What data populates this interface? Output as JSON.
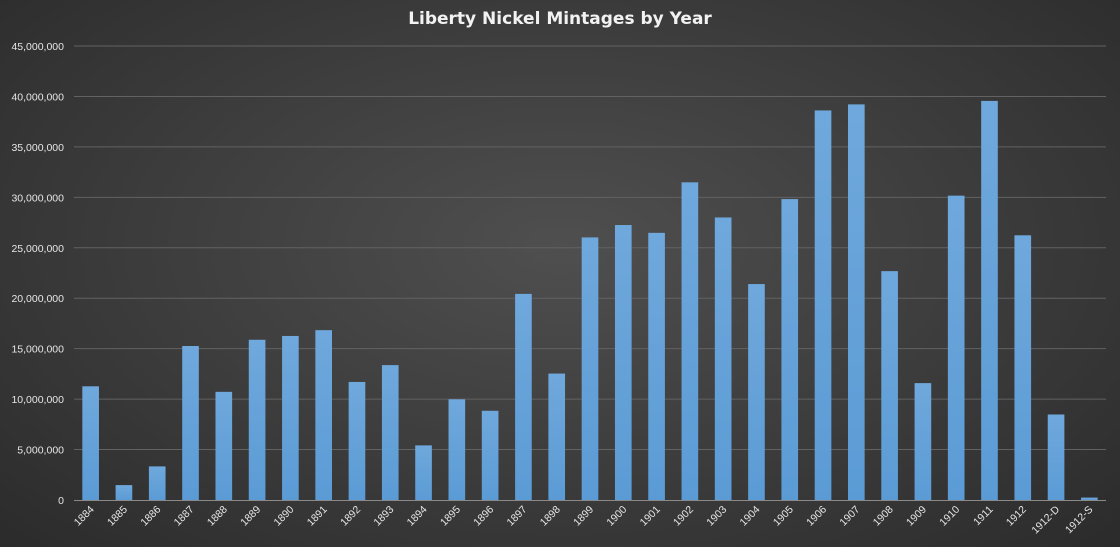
{
  "chart_data": {
    "type": "bar",
    "title": "Liberty Nickel Mintages by Year",
    "xlabel": "",
    "ylabel": "",
    "ylim": [
      0,
      45000000
    ],
    "yticks": [
      0,
      5000000,
      10000000,
      15000000,
      20000000,
      25000000,
      30000000,
      35000000,
      40000000,
      45000000
    ],
    "ytick_labels": [
      "0",
      "5,000,000",
      "10,000,000",
      "15,000,000",
      "20,000,000",
      "25,000,000",
      "30,000,000",
      "35,000,000",
      "40,000,000",
      "45,000,000"
    ],
    "grid": true,
    "legend": "none",
    "bar_color": "#5b9bd5",
    "categories": [
      "1884",
      "1885",
      "1886",
      "1887",
      "1888",
      "1889",
      "1890",
      "1891",
      "1892",
      "1893",
      "1894",
      "1895",
      "1896",
      "1897",
      "1898",
      "1899",
      "1900",
      "1901",
      "1902",
      "1903",
      "1904",
      "1905",
      "1906",
      "1907",
      "1908",
      "1909",
      "1910",
      "1911",
      "1912",
      "1912-D",
      "1912-S"
    ],
    "values": [
      11270000,
      1476490,
      3330290,
      15263652,
      10720483,
      15881361,
      16259272,
      16834350,
      11699642,
      13370195,
      5413132,
      9979884,
      8842920,
      20428735,
      12532087,
      26029031,
      27255995,
      26480213,
      31487561,
      28004935,
      21403167,
      29827276,
      38613725,
      39213325,
      22684557,
      11585763,
      30166948,
      39557639,
      26236714,
      8474000,
      238000
    ]
  }
}
